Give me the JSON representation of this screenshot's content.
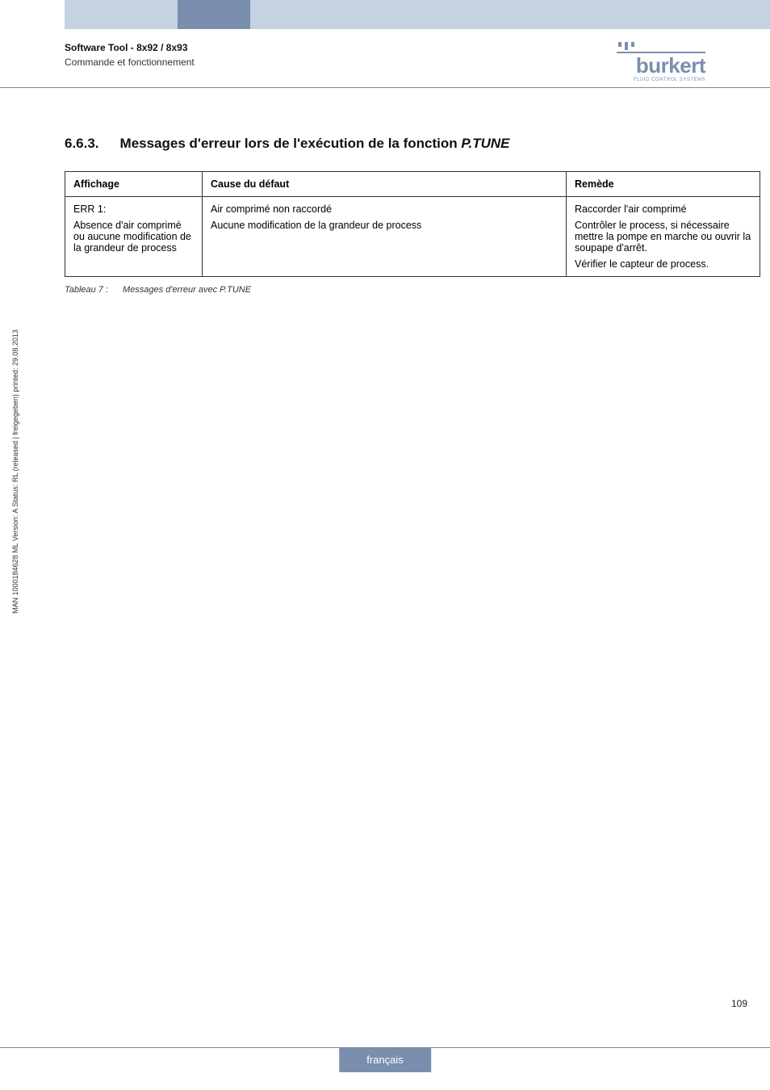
{
  "header": {
    "title_line1": "Software Tool - 8x92 / 8x93",
    "title_line2": "Commande et fonctionnement",
    "logo_text": "burkert",
    "logo_sub": "FLUID CONTROL SYSTEMS"
  },
  "section": {
    "number": "6.6.3.",
    "title_prefix": "Messages d'erreur lors de l'exécution de la fonction ",
    "title_italic": "P.TUNE"
  },
  "table": {
    "headers": {
      "affichage": "Affichage",
      "cause": "Cause du défaut",
      "remede": "Remède"
    },
    "row": {
      "affichage_l1": "ERR 1:",
      "affichage_l2": "Absence d'air comprimé ou aucune modification de la grandeur de process",
      "cause_l1": "Air comprimé non raccordé",
      "cause_l2": "Aucune modification de la grandeur de process",
      "remede_l1": "Raccorder l'air comprimé",
      "remede_l2": "Contrôler le process, si nécessaire mettre la pompe en marche ou ouvrir la soupape d'arrêt.",
      "remede_l3": "Vérifier le capteur de process."
    }
  },
  "caption": {
    "label": "Tableau 7 :",
    "text": "Messages d'erreur avec P.TUNE"
  },
  "side_text": "MAN 1000184628 ML Version: A Status: RL (released | freigegeben) printed: 29.08.2013",
  "page_number": "109",
  "footer_tab": "français",
  "colors": {
    "brand": "#7a8fad",
    "light_bar": "#c4d2e1",
    "rule": "#888888",
    "text": "#000000"
  }
}
